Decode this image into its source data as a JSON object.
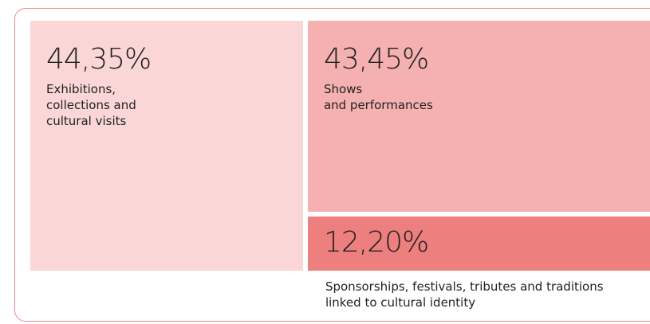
{
  "chart_data": {
    "type": "treemap",
    "categories": [
      "Exhibitions,\ncollections and\ncultural visits",
      "Shows\nand performances",
      "Sponsorships, festivals, tributes and traditions\nlinked to cultural identity"
    ],
    "values": [
      44.35,
      43.45,
      12.2
    ],
    "value_labels": [
      "44,35%",
      "43,45%",
      "12,20%"
    ],
    "colors": [
      "#fbd6d6",
      "#f5b0b1",
      "#ee7f7f"
    ]
  }
}
